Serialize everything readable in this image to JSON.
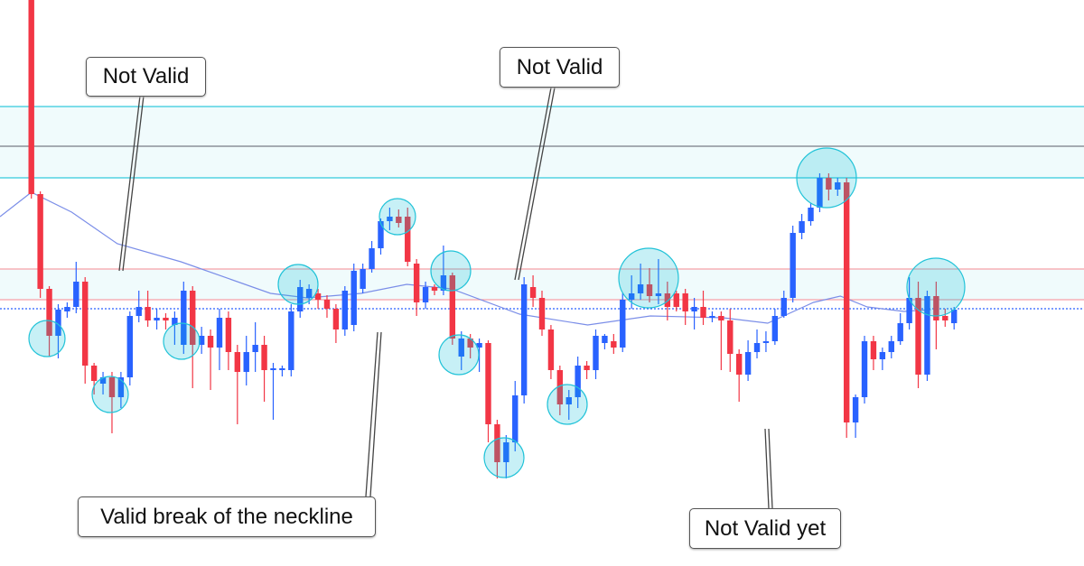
{
  "chart_data": {
    "type": "candlestick",
    "up_color": "#2962ff",
    "down_color": "#f23645",
    "ma_color": "#7b8ee8",
    "xlim": [
      -3.5,
      117.5
    ],
    "ylim": [
      0,
      627
    ],
    "zones": [
      {
        "from": 430,
        "to": 509,
        "color": "#00bcd4"
      },
      {
        "from": 295,
        "to": 329,
        "color": "#00bcd4"
      }
    ],
    "levels": [
      {
        "value": 465,
        "color": "#787b86"
      },
      {
        "value": 329,
        "color": "#f7a1a8"
      },
      {
        "value": 295,
        "color": "#f7a1a8"
      },
      {
        "value": 285,
        "color": "#2962ff"
      }
    ],
    "ohlc": [
      [
        627,
        627,
        407,
        412
      ],
      [
        412,
        415,
        297,
        307
      ],
      [
        307,
        310,
        232,
        255
      ],
      [
        255,
        290,
        230,
        284
      ],
      [
        282,
        292,
        275,
        287
      ],
      [
        287,
        337,
        280,
        315
      ],
      [
        315,
        320,
        202,
        222
      ],
      [
        222,
        225,
        190,
        205
      ],
      [
        202,
        215,
        190,
        209
      ],
      [
        209,
        215,
        147,
        187
      ],
      [
        187,
        215,
        175,
        209
      ],
      [
        209,
        282,
        200,
        277
      ],
      [
        277,
        305,
        270,
        287
      ],
      [
        287,
        305,
        265,
        272
      ],
      [
        272,
        285,
        262,
        275
      ],
      [
        275,
        280,
        262,
        272
      ],
      [
        267,
        282,
        245,
        275
      ],
      [
        245,
        315,
        235,
        305
      ],
      [
        305,
        310,
        197,
        245
      ],
      [
        245,
        265,
        235,
        255
      ],
      [
        255,
        262,
        195,
        242
      ],
      [
        242,
        285,
        217,
        275
      ],
      [
        275,
        282,
        217,
        237
      ],
      [
        237,
        245,
        157,
        215
      ],
      [
        215,
        255,
        200,
        237
      ],
      [
        237,
        270,
        215,
        245
      ],
      [
        245,
        255,
        182,
        217
      ],
      [
        217,
        225,
        162,
        219
      ],
      [
        217,
        222,
        210,
        219
      ],
      [
        217,
        290,
        210,
        282
      ],
      [
        282,
        317,
        275,
        309
      ],
      [
        297,
        312,
        290,
        307
      ],
      [
        302,
        307,
        285,
        295
      ],
      [
        295,
        300,
        275,
        285
      ],
      [
        285,
        290,
        247,
        262
      ],
      [
        262,
        310,
        255,
        305
      ],
      [
        267,
        335,
        260,
        327
      ],
      [
        307,
        335,
        302,
        329
      ],
      [
        329,
        360,
        325,
        352
      ],
      [
        352,
        385,
        345,
        382
      ],
      [
        382,
        397,
        372,
        387
      ],
      [
        387,
        395,
        375,
        380
      ],
      [
        387,
        397,
        332,
        337
      ],
      [
        335,
        340,
        277,
        292
      ],
      [
        292,
        315,
        285,
        309
      ],
      [
        309,
        312,
        300,
        305
      ],
      [
        305,
        355,
        300,
        322
      ],
      [
        322,
        325,
        245,
        252
      ],
      [
        232,
        260,
        217,
        252
      ],
      [
        252,
        257,
        230,
        242
      ],
      [
        242,
        252,
        215,
        247
      ],
      [
        247,
        250,
        137,
        157
      ],
      [
        157,
        162,
        97,
        115
      ],
      [
        115,
        145,
        97,
        137
      ],
      [
        137,
        205,
        127,
        189
      ],
      [
        189,
        320,
        180,
        312
      ],
      [
        309,
        322,
        287,
        297
      ],
      [
        297,
        305,
        255,
        262
      ],
      [
        262,
        267,
        207,
        217
      ],
      [
        217,
        222,
        167,
        179
      ],
      [
        179,
        195,
        162,
        187
      ],
      [
        187,
        232,
        175,
        222
      ],
      [
        222,
        227,
        207,
        217
      ],
      [
        217,
        262,
        207,
        255
      ],
      [
        247,
        257,
        240,
        255
      ],
      [
        249,
        257,
        235,
        242
      ],
      [
        242,
        302,
        237,
        295
      ],
      [
        295,
        322,
        285,
        302
      ],
      [
        302,
        335,
        295,
        312
      ],
      [
        312,
        330,
        292,
        299
      ],
      [
        299,
        340,
        290,
        302
      ],
      [
        302,
        315,
        272,
        287
      ],
      [
        302,
        305,
        282,
        287
      ],
      [
        302,
        307,
        267,
        282
      ],
      [
        282,
        297,
        262,
        287
      ],
      [
        287,
        305,
        267,
        275
      ],
      [
        275,
        282,
        270,
        277
      ],
      [
        277,
        282,
        217,
        272
      ],
      [
        272,
        285,
        215,
        235
      ],
      [
        235,
        240,
        182,
        212
      ],
      [
        212,
        250,
        205,
        237
      ],
      [
        237,
        262,
        230,
        247
      ],
      [
        247,
        260,
        237,
        249
      ],
      [
        249,
        285,
        245,
        277
      ],
      [
        277,
        305,
        275,
        297
      ],
      [
        297,
        377,
        292,
        369
      ],
      [
        369,
        390,
        362,
        382
      ],
      [
        382,
        402,
        377,
        397
      ],
      [
        397,
        435,
        392,
        430
      ],
      [
        430,
        435,
        405,
        417
      ],
      [
        417,
        430,
        410,
        425
      ],
      [
        425,
        430,
        142,
        159
      ],
      [
        159,
        190,
        142,
        187
      ],
      [
        187,
        255,
        180,
        249
      ],
      [
        249,
        255,
        217,
        229
      ],
      [
        229,
        242,
        217,
        237
      ],
      [
        237,
        255,
        230,
        249
      ],
      [
        249,
        280,
        245,
        269
      ],
      [
        269,
        320,
        262,
        297
      ],
      [
        297,
        315,
        197,
        212
      ],
      [
        212,
        305,
        205,
        299
      ],
      [
        299,
        315,
        240,
        272
      ],
      [
        277,
        285,
        265,
        272
      ],
      [
        269,
        287,
        262,
        284
      ]
    ],
    "ma": {
      "x": [
        -3.5,
        0,
        4.5,
        9.6,
        16.7,
        26.7,
        30.8,
        36.8,
        41.9,
        46.9,
        54.5,
        62.1,
        69.1,
        77.2,
        82.2,
        87.3,
        90.3,
        93.3,
        97.4,
        100.4
      ],
      "values": [
        387,
        414,
        392,
        357,
        337,
        302,
        297,
        302,
        312,
        307,
        279,
        267,
        277,
        275,
        269,
        292,
        299,
        287,
        282,
        284
      ]
    },
    "annotations": [
      "Not Valid",
      "Not Valid",
      "Valid break of the neckline",
      "Not Valid yet"
    ]
  }
}
